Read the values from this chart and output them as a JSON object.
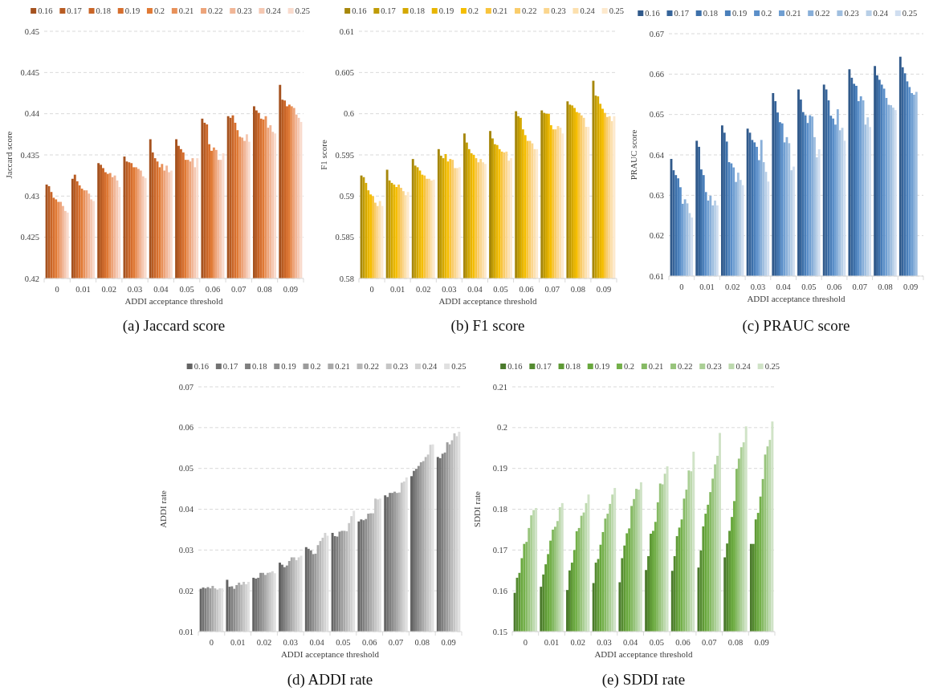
{
  "chart_data": [
    {
      "type": "bar",
      "title": "(a)  Jaccard score",
      "xlabel": "ADDI acceptance threshold",
      "ylabel": "Jaccard score",
      "categories": [
        "0",
        "0.01",
        "0.02",
        "0.03",
        "0.04",
        "0.05",
        "0.06",
        "0.07",
        "0.08",
        "0.09"
      ],
      "ylim": [
        0.42,
        0.45
      ],
      "yticks": [
        0.42,
        0.425,
        0.43,
        0.435,
        0.44,
        0.445,
        0.45
      ],
      "grid": "y",
      "legend": "top",
      "series": [
        {
          "name": "0.16",
          "color": "#a5521f",
          "values": [
            0.4314,
            0.4321,
            0.434,
            0.4348,
            0.4369,
            0.4369,
            0.4394,
            0.4397,
            0.4409,
            0.4435
          ]
        },
        {
          "name": "0.17",
          "color": "#b85c23",
          "values": [
            0.4312,
            0.4326,
            0.4338,
            0.4342,
            0.4353,
            0.4361,
            0.4389,
            0.4395,
            0.4404,
            0.4417
          ]
        },
        {
          "name": "0.18",
          "color": "#c96527",
          "values": [
            0.4305,
            0.4318,
            0.4334,
            0.4341,
            0.4346,
            0.4357,
            0.4387,
            0.4398,
            0.4401,
            0.4416
          ]
        },
        {
          "name": "0.19",
          "color": "#d66f2e",
          "values": [
            0.4298,
            0.4313,
            0.4329,
            0.434,
            0.4342,
            0.4353,
            0.4363,
            0.4389,
            0.4394,
            0.4409
          ]
        },
        {
          "name": "0.2",
          "color": "#e07a35",
          "values": [
            0.4296,
            0.4309,
            0.4327,
            0.4335,
            0.4335,
            0.4344,
            0.4355,
            0.438,
            0.4393,
            0.4411
          ]
        },
        {
          "name": "0.21",
          "color": "#e8915a",
          "values": [
            0.4293,
            0.4307,
            0.4328,
            0.4335,
            0.4339,
            0.4344,
            0.4359,
            0.4372,
            0.4397,
            0.4409
          ]
        },
        {
          "name": "0.22",
          "color": "#eda47a",
          "values": [
            0.4293,
            0.4307,
            0.4323,
            0.4333,
            0.4331,
            0.4342,
            0.4356,
            0.4371,
            0.4383,
            0.4407
          ]
        },
        {
          "name": "0.23",
          "color": "#f1b697",
          "values": [
            0.4288,
            0.4303,
            0.4325,
            0.4331,
            0.4337,
            0.4346,
            0.4344,
            0.4367,
            0.4386,
            0.4399
          ]
        },
        {
          "name": "0.24",
          "color": "#f5c8b2",
          "values": [
            0.4282,
            0.4296,
            0.4319,
            0.4324,
            0.4329,
            0.4335,
            0.4344,
            0.4375,
            0.4378,
            0.4395
          ]
        },
        {
          "name": "0.25",
          "color": "#f9dbcd",
          "values": [
            0.428,
            0.4294,
            0.4311,
            0.4322,
            0.4331,
            0.4346,
            0.4352,
            0.4366,
            0.4376,
            0.439
          ]
        }
      ]
    },
    {
      "type": "bar",
      "title": "(b)  F1 score",
      "xlabel": "ADDI acceptance threshold",
      "ylabel": "F1 score",
      "categories": [
        "0",
        "0.01",
        "0.02",
        "0.03",
        "0.04",
        "0.05",
        "0.06",
        "0.07",
        "0.08",
        "0.09"
      ],
      "ylim": [
        0.58,
        0.61
      ],
      "yticks": [
        0.58,
        0.585,
        0.59,
        0.595,
        0.6,
        0.605,
        0.61
      ],
      "grid": "y",
      "legend": "top",
      "series": [
        {
          "name": "0.16",
          "color": "#a6870b",
          "values": [
            0.5925,
            0.5932,
            0.5945,
            0.5957,
            0.5976,
            0.5979,
            0.6003,
            0.6004,
            0.6015,
            0.604
          ]
        },
        {
          "name": "0.17",
          "color": "#bf9b05",
          "values": [
            0.5923,
            0.5919,
            0.5937,
            0.5949,
            0.5965,
            0.597,
            0.5997,
            0.6001,
            0.6011,
            0.6022
          ]
        },
        {
          "name": "0.18",
          "color": "#d4a800",
          "values": [
            0.5916,
            0.5916,
            0.5935,
            0.5946,
            0.5957,
            0.5963,
            0.5995,
            0.6,
            0.601,
            0.6021
          ]
        },
        {
          "name": "0.19",
          "color": "#e8b500",
          "values": [
            0.5907,
            0.5914,
            0.5931,
            0.5951,
            0.5952,
            0.5962,
            0.5981,
            0.6,
            0.6007,
            0.6012
          ]
        },
        {
          "name": "0.2",
          "color": "#f5be00",
          "values": [
            0.5902,
            0.5911,
            0.5926,
            0.5942,
            0.595,
            0.5957,
            0.5974,
            0.5986,
            0.6002,
            0.6006
          ]
        },
        {
          "name": "0.21",
          "color": "#f8c43c",
          "values": [
            0.59,
            0.5914,
            0.5925,
            0.5945,
            0.5946,
            0.5954,
            0.5967,
            0.5981,
            0.6001,
            0.6001
          ]
        },
        {
          "name": "0.22",
          "color": "#f9cc6a",
          "values": [
            0.5892,
            0.591,
            0.5921,
            0.5944,
            0.5941,
            0.5953,
            0.5967,
            0.5981,
            0.5998,
            0.5996
          ]
        },
        {
          "name": "0.23",
          "color": "#fbd68e",
          "values": [
            0.5888,
            0.5906,
            0.5921,
            0.5934,
            0.5945,
            0.5954,
            0.5964,
            0.5985,
            0.5995,
            0.5997
          ]
        },
        {
          "name": "0.24",
          "color": "#fce0ae",
          "values": [
            0.5894,
            0.5901,
            0.5919,
            0.5934,
            0.5941,
            0.5943,
            0.5957,
            0.5983,
            0.5984,
            0.5991
          ]
        },
        {
          "name": "0.25",
          "color": "#fde9cd",
          "values": [
            0.5888,
            0.5905,
            0.592,
            0.5935,
            0.5939,
            0.5946,
            0.5957,
            0.5976,
            0.5984,
            0.5997
          ]
        }
      ]
    },
    {
      "type": "bar",
      "title": "(c)  PRAUC score",
      "xlabel": "ADDI acceptance threshold",
      "ylabel": "PRAUC score",
      "categories": [
        "0",
        "0.01",
        "0.02",
        "0.03",
        "0.04",
        "0.05",
        "0.06",
        "0.07",
        "0.08",
        "0.09"
      ],
      "ylim": [
        0.61,
        0.67
      ],
      "yticks": [
        0.61,
        0.62,
        0.63,
        0.64,
        0.65,
        0.66,
        0.67
      ],
      "grid": "y",
      "legend": "top",
      "series": [
        {
          "name": "0.16",
          "color": "#30598a",
          "values": [
            0.639,
            0.6435,
            0.6473,
            0.6465,
            0.6553,
            0.6562,
            0.6574,
            0.6612,
            0.662,
            0.6643
          ]
        },
        {
          "name": "0.17",
          "color": "#36649a",
          "values": [
            0.6362,
            0.642,
            0.6455,
            0.6455,
            0.6533,
            0.6537,
            0.6562,
            0.6591,
            0.6597,
            0.6617
          ]
        },
        {
          "name": "0.18",
          "color": "#3d70aa",
          "values": [
            0.635,
            0.6364,
            0.6433,
            0.6437,
            0.6505,
            0.6506,
            0.6535,
            0.6576,
            0.6586,
            0.6602
          ]
        },
        {
          "name": "0.19",
          "color": "#4a7fba",
          "values": [
            0.6342,
            0.635,
            0.6382,
            0.6431,
            0.6481,
            0.6498,
            0.6497,
            0.6571,
            0.6574,
            0.6582
          ]
        },
        {
          "name": "0.2",
          "color": "#5b8fc9",
          "values": [
            0.632,
            0.6308,
            0.6379,
            0.642,
            0.6478,
            0.6479,
            0.649,
            0.6533,
            0.6564,
            0.6568
          ]
        },
        {
          "name": "0.21",
          "color": "#709fd2",
          "values": [
            0.6279,
            0.6287,
            0.6369,
            0.6387,
            0.6431,
            0.6498,
            0.6475,
            0.6545,
            0.6541,
            0.6553
          ]
        },
        {
          "name": "0.22",
          "color": "#88afd9",
          "values": [
            0.629,
            0.6299,
            0.6333,
            0.6437,
            0.6444,
            0.6495,
            0.6513,
            0.6535,
            0.6524,
            0.6549
          ]
        },
        {
          "name": "0.23",
          "color": "#a0bfe0",
          "values": [
            0.628,
            0.6275,
            0.6356,
            0.6382,
            0.6429,
            0.6444,
            0.6461,
            0.6475,
            0.6523,
            0.6556
          ]
        },
        {
          "name": "0.24",
          "color": "#b8cfe7",
          "values": [
            0.6256,
            0.6287,
            0.6338,
            0.6358,
            0.6362,
            0.6394,
            0.6467,
            0.6493,
            0.6517,
            null
          ]
        },
        {
          "name": "0.25",
          "color": "#d0def0",
          "values": [
            0.6245,
            0.6275,
            0.6325,
            0.6334,
            0.6371,
            0.6414,
            0.6435,
            0.6469,
            0.6511,
            null
          ]
        }
      ]
    },
    {
      "type": "bar",
      "title": "(d)  ADDI rate",
      "xlabel": "ADDI acceptance threshold",
      "ylabel": "ADDI rate",
      "categories": [
        "0",
        "0.01",
        "0.02",
        "0.03",
        "0.04",
        "0.05",
        "0.06",
        "0.07",
        "0.08",
        "0.09"
      ],
      "ylim": [
        0.01,
        0.07
      ],
      "yticks": [
        0.01,
        0.02,
        0.03,
        0.04,
        0.05,
        0.06,
        0.07
      ],
      "grid": "y",
      "legend": "top",
      "series": [
        {
          "name": "0.16",
          "color": "#636363",
          "values": [
            0.0205,
            0.0227,
            0.0232,
            0.0269,
            0.0307,
            0.0342,
            0.037,
            0.0434,
            0.0481,
            0.0528
          ]
        },
        {
          "name": "0.17",
          "color": "#727272",
          "values": [
            0.0208,
            0.021,
            0.023,
            0.0264,
            0.0303,
            0.0334,
            0.0375,
            0.043,
            0.0494,
            0.0525
          ]
        },
        {
          "name": "0.18",
          "color": "#808080",
          "values": [
            0.0206,
            0.0211,
            0.0232,
            0.0258,
            0.0299,
            0.0333,
            0.0373,
            0.044,
            0.0499,
            0.0536
          ]
        },
        {
          "name": "0.19",
          "color": "#8e8e8e",
          "values": [
            0.0209,
            0.0205,
            0.0244,
            0.0262,
            0.029,
            0.0345,
            0.0376,
            0.044,
            0.0506,
            0.0539
          ]
        },
        {
          "name": "0.2",
          "color": "#9c9c9c",
          "values": [
            0.0206,
            0.0214,
            0.0244,
            0.0273,
            0.0291,
            0.0347,
            0.0389,
            0.0443,
            0.0515,
            0.0564
          ]
        },
        {
          "name": "0.21",
          "color": "#aaaaaa",
          "values": [
            0.0212,
            0.022,
            0.0239,
            0.0282,
            0.0312,
            0.0347,
            0.039,
            0.044,
            0.0518,
            0.0559
          ]
        },
        {
          "name": "0.22",
          "color": "#b8b8b8",
          "values": [
            0.0206,
            0.0215,
            0.0244,
            0.0282,
            0.0322,
            0.0346,
            0.039,
            0.0441,
            0.0528,
            0.0569
          ]
        },
        {
          "name": "0.23",
          "color": "#c6c6c6",
          "values": [
            0.0203,
            0.0222,
            0.0245,
            0.0275,
            0.033,
            0.0366,
            0.0426,
            0.0465,
            0.0534,
            0.0586
          ]
        },
        {
          "name": "0.24",
          "color": "#d3d3d3",
          "values": [
            0.0206,
            0.0216,
            0.0248,
            0.0282,
            0.0342,
            0.0383,
            0.0424,
            0.0468,
            0.0558,
            0.0579
          ]
        },
        {
          "name": "0.25",
          "color": "#e0e0e0",
          "values": [
            0.0206,
            0.0222,
            0.0243,
            0.0286,
            0.0335,
            0.0396,
            0.0426,
            0.0478,
            0.0559,
            0.059
          ]
        }
      ]
    },
    {
      "type": "bar",
      "title": "(e)  SDDI rate",
      "xlabel": "ADDI acceptance threshold",
      "ylabel": "SDDI rate",
      "categories": [
        "0",
        "0.01",
        "0.02",
        "0.03",
        "0.04",
        "0.05",
        "0.06",
        "0.07",
        "0.08",
        "0.09"
      ],
      "ylim": [
        0.15,
        0.21
      ],
      "yticks": [
        0.15,
        0.16,
        0.17,
        0.18,
        0.19,
        0.2,
        0.21
      ],
      "grid": "y",
      "legend": "top",
      "series": [
        {
          "name": "0.16",
          "color": "#4b7a2c",
          "values": [
            0.1595,
            0.161,
            0.1602,
            0.1619,
            0.1621,
            0.1651,
            0.1649,
            0.1657,
            0.1682,
            0.1715
          ]
        },
        {
          "name": "0.17",
          "color": "#548a30",
          "values": [
            0.1632,
            0.164,
            0.165,
            0.1669,
            0.168,
            0.1685,
            0.1685,
            0.1699,
            0.1716,
            0.1715
          ]
        },
        {
          "name": "0.18",
          "color": "#5f9a36",
          "values": [
            0.1644,
            0.1665,
            0.1669,
            0.1678,
            0.1711,
            0.174,
            0.1734,
            0.1758,
            0.1747,
            0.1775
          ]
        },
        {
          "name": "0.19",
          "color": "#69a83e",
          "values": [
            0.168,
            0.169,
            0.17,
            0.1713,
            0.1741,
            0.1747,
            0.1755,
            0.1789,
            0.1781,
            0.1791
          ]
        },
        {
          "name": "0.2",
          "color": "#74b04a",
          "values": [
            0.1715,
            0.1723,
            0.1746,
            0.1744,
            0.1753,
            0.1769,
            0.1775,
            0.1811,
            0.182,
            0.1831
          ]
        },
        {
          "name": "0.21",
          "color": "#86ba64",
          "values": [
            0.172,
            0.175,
            0.1754,
            0.1777,
            0.1808,
            0.1817,
            0.1826,
            0.1842,
            0.1899,
            0.1874
          ]
        },
        {
          "name": "0.22",
          "color": "#98c47c",
          "values": [
            0.1754,
            0.1757,
            0.1784,
            0.1789,
            0.1825,
            0.1863,
            0.1848,
            0.1875,
            0.1924,
            0.1934
          ]
        },
        {
          "name": "0.23",
          "color": "#aacf95",
          "values": [
            0.1785,
            0.1771,
            0.1792,
            0.1813,
            0.185,
            0.1861,
            0.1895,
            0.191,
            0.1952,
            0.1954
          ]
        },
        {
          "name": "0.24",
          "color": "#bdd9ae",
          "values": [
            0.1798,
            0.1805,
            0.1815,
            0.1836,
            0.1848,
            0.1887,
            0.1893,
            0.1931,
            0.1964,
            0.197
          ]
        },
        {
          "name": "0.25",
          "color": "#d0e3c7",
          "values": [
            0.1803,
            0.1815,
            0.1836,
            0.1852,
            0.1866,
            0.1905,
            0.1941,
            0.1987,
            0.2003,
            0.2015
          ]
        }
      ]
    }
  ]
}
